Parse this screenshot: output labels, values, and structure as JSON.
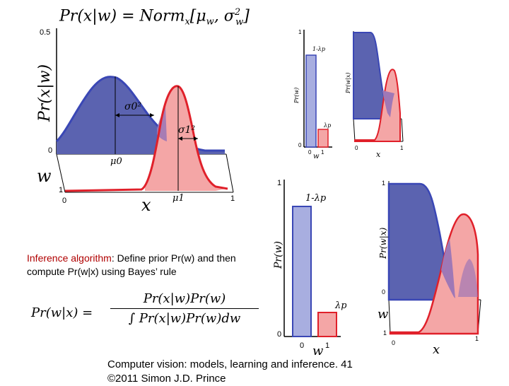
{
  "title_formula": "Pr(x|w) = Norm",
  "title_formula_sub": "x",
  "title_formula_args": "[μ",
  "title_formula_w": "w",
  "title_formula_sigma": ", σ",
  "title_formula_sigma_sup": "2",
  "title_formula_sigma_sub": "w",
  "title_formula_end": "]",
  "left_plot": {
    "ylabel": "Pr(x|w)",
    "ytick_top": "0.5",
    "ytick_zero": "0",
    "w_label": "w",
    "w_tick_1": "1",
    "x_tick_0": "0",
    "x_tick_1": "1",
    "xlabel": "x",
    "mu0": "μ0",
    "mu1": "μ1",
    "sigma0": "σ0²",
    "sigma1": "σ1²"
  },
  "small_prior": {
    "ylabel": "Pr(w)",
    "label_top": "1-λp",
    "label_low": "λp",
    "tick_1": "1",
    "tick_0": "0",
    "x_tick_0": "0",
    "x_tick_1": "1",
    "xlabel": "w"
  },
  "small_posterior": {
    "ylabel": "Pr(w|x)",
    "x_tick_0": "0",
    "x_tick_1": "1",
    "xlabel": "x"
  },
  "big_prior": {
    "ylabel": "Pr(w)",
    "label_top": "1-λp",
    "label_low": "λp",
    "tick_1": "1",
    "tick_0": "0",
    "x_tick_0": "0",
    "x_tick_1": "1",
    "xlabel": "w"
  },
  "big_posterior": {
    "ylabel": "Pr(w|x)",
    "tick_1": "1",
    "tick_0": "0",
    "w_label": "w",
    "w_tick_1": "1",
    "x_tick_0": "0",
    "x_tick_1": "1",
    "xlabel": "x"
  },
  "caption": {
    "highlight": "Inference algorithm",
    "rest": ":  Define prior Pr(w) and then compute Pr(w|x) using Bayes’ rule"
  },
  "bayes": {
    "lhs": "Pr(w|x) =",
    "numerator": "Pr(x|w)Pr(w)",
    "denominator": "∫ Pr(x|w)Pr(w)dw"
  },
  "footer": {
    "line1": "Computer vision: models, learning and inference.  41",
    "line2": "©2011 Simon J.D. Prince"
  },
  "colors": {
    "blue_fill": "#5b63b0",
    "blue_line": "#3a47b5",
    "red_fill": "#f4a6a6",
    "red_line": "#e0202a",
    "purple_overlap": "#9f78b6"
  }
}
